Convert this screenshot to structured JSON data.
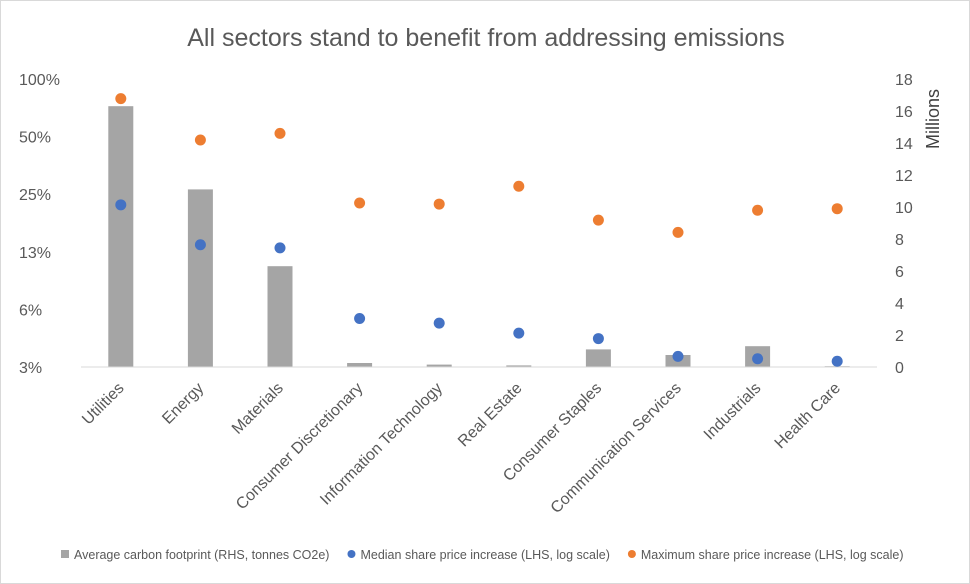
{
  "chart_data": {
    "type": "bar",
    "title": "All sectors stand to benefit from addressing emissions",
    "categories": [
      "Utilities",
      "Energy",
      "Materials",
      "Consumer Discretionary",
      "Information Technology",
      "Real Estate",
      "Consumer Staples",
      "Communication Services",
      "Industrials",
      "Health Care"
    ],
    "left_axis": {
      "scale": "log",
      "ticks": [
        "3%",
        "6%",
        "13%",
        "25%",
        "50%",
        "100%"
      ],
      "tick_values": [
        3.125,
        6.25,
        12.5,
        25,
        50,
        100
      ],
      "ylim": [
        3.125,
        100
      ]
    },
    "right_axis": {
      "label": "Millions",
      "ticks": [
        "0",
        "2",
        "4",
        "6",
        "8",
        "10",
        "12",
        "14",
        "16",
        "18"
      ],
      "ylim": [
        0,
        18
      ]
    },
    "series": [
      {
        "name": "Average carbon footprint (RHS, tonnes CO2e)",
        "type": "bar",
        "axis": "right",
        "color": "#a5a5a5",
        "values": [
          16.3,
          11.1,
          6.3,
          0.25,
          0.15,
          0.1,
          1.1,
          0.75,
          1.3,
          0.05
        ]
      },
      {
        "name": "Median share price increase (LHS, log scale)",
        "type": "scatter",
        "axis": "left",
        "color": "#4472c4",
        "values": [
          22,
          13.6,
          13.1,
          5.6,
          5.3,
          4.7,
          4.4,
          3.55,
          3.45,
          3.35
        ]
      },
      {
        "name": "Maximum share price increase (LHS, log scale)",
        "type": "scatter",
        "axis": "left",
        "color": "#ed7d31",
        "values": [
          79,
          48,
          52,
          22.5,
          22.2,
          27.5,
          18.3,
          15.8,
          20.6,
          21.0
        ]
      }
    ],
    "grid": false,
    "legend_position": "bottom"
  }
}
